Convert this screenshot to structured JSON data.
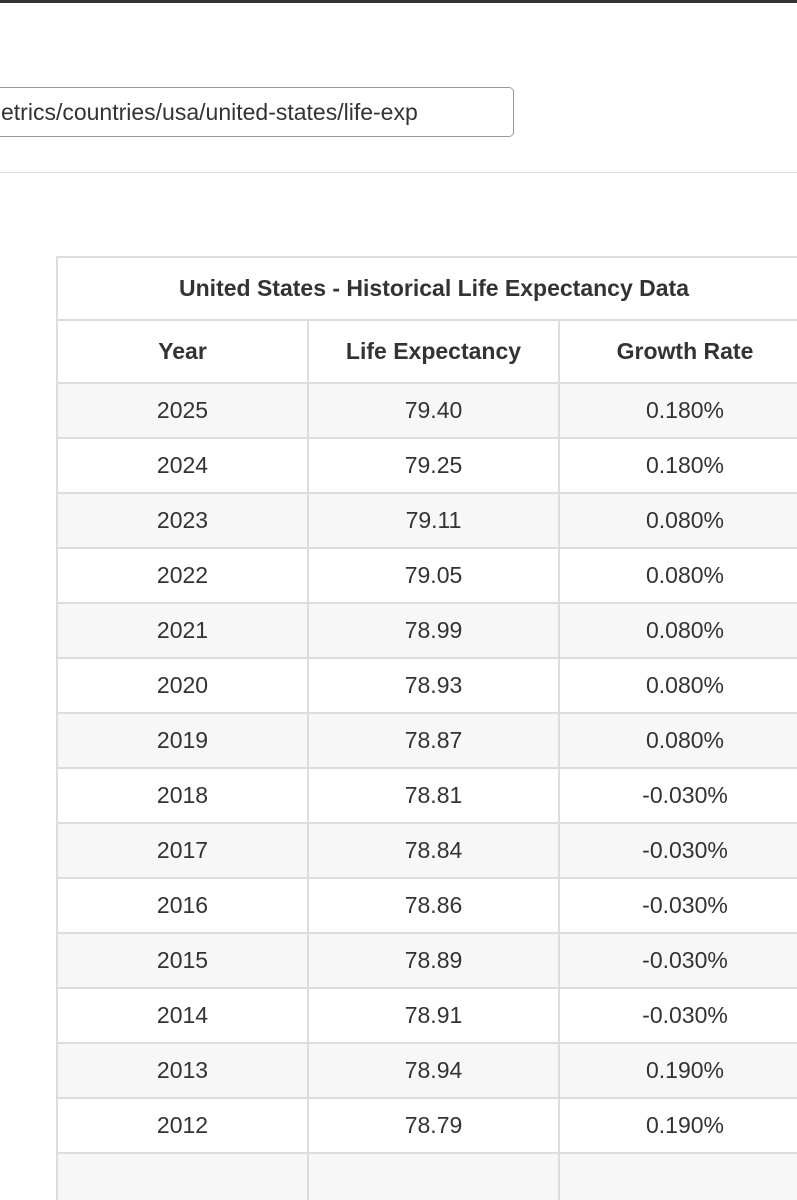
{
  "url_bar": {
    "text": "etrics/countries/usa/united-states/life-exp"
  },
  "table": {
    "title": "United States - Historical Life Expectancy Data",
    "headers": [
      "Year",
      "Life Expectancy",
      "Growth Rate"
    ],
    "rows": [
      [
        "2025",
        "79.40",
        "0.180%"
      ],
      [
        "2024",
        "79.25",
        "0.180%"
      ],
      [
        "2023",
        "79.11",
        "0.080%"
      ],
      [
        "2022",
        "79.05",
        "0.080%"
      ],
      [
        "2021",
        "78.99",
        "0.080%"
      ],
      [
        "2020",
        "78.93",
        "0.080%"
      ],
      [
        "2019",
        "78.87",
        "0.080%"
      ],
      [
        "2018",
        "78.81",
        "-0.030%"
      ],
      [
        "2017",
        "78.84",
        "-0.030%"
      ],
      [
        "2016",
        "78.86",
        "-0.030%"
      ],
      [
        "2015",
        "78.89",
        "-0.030%"
      ],
      [
        "2014",
        "78.91",
        "-0.030%"
      ],
      [
        "2013",
        "78.94",
        "0.190%"
      ],
      [
        "2012",
        "78.79",
        "0.190%"
      ]
    ]
  }
}
